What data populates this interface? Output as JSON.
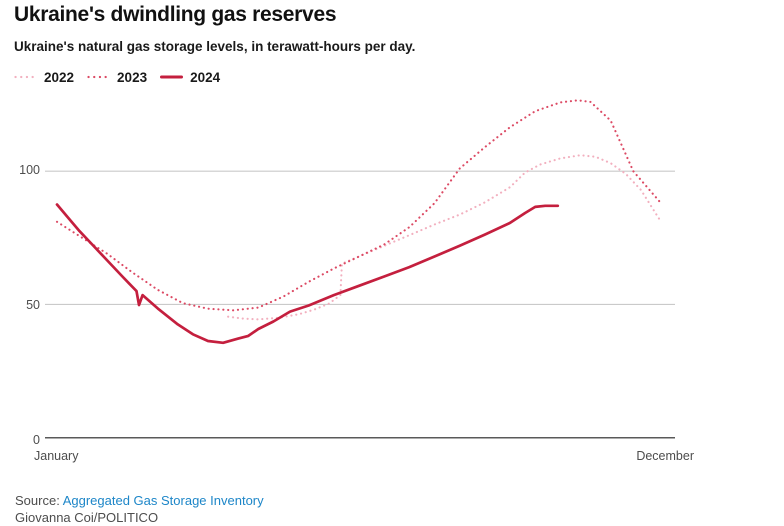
{
  "header": {
    "title": "Ukraine's dwindling gas reserves",
    "subtitle": "Ukraine's natural gas storage levels, in terawatt-hours per day."
  },
  "legend": [
    {
      "label": "2022",
      "color": "#f2b0bf",
      "style": "dotted"
    },
    {
      "label": "2023",
      "color": "#dc4a64",
      "style": "dotted"
    },
    {
      "label": "2024",
      "color": "#c41f3e",
      "style": "solid"
    }
  ],
  "chart_data": {
    "type": "line",
    "title": "Ukraine's dwindling gas reserves",
    "subtitle": "Ukraine's natural gas storage levels, in terawatt-hours per day.",
    "xlabel": "",
    "ylabel": "terawatt-hours per day",
    "x_axis": {
      "start_label": "January",
      "end_label": "December",
      "domain_months": [
        0,
        12
      ]
    },
    "y_axis": {
      "ticks": [
        0,
        50,
        100
      ],
      "ylim": [
        0,
        135
      ]
    },
    "grid": "horizontal",
    "legend_position": "top-left",
    "colors": {
      "grid": "#cacaca",
      "axis": "#595959"
    },
    "series": [
      {
        "name": "2022",
        "style": "dotted",
        "color": "#f2b0bf",
        "points": [
          [
            3.4,
            45.4
          ],
          [
            3.7,
            44.7
          ],
          [
            4.0,
            44.4
          ],
          [
            4.4,
            45.0
          ],
          [
            4.8,
            46.3
          ],
          [
            5.1,
            48.0
          ],
          [
            5.4,
            50.3
          ],
          [
            5.63,
            53.5
          ],
          [
            5.66,
            65.3
          ],
          [
            6.0,
            68.0
          ],
          [
            6.5,
            72.0
          ],
          [
            7.0,
            76.0
          ],
          [
            7.5,
            80.0
          ],
          [
            8.0,
            83.7
          ],
          [
            8.5,
            88.3
          ],
          [
            9.0,
            94.0
          ],
          [
            9.3,
            99.5
          ],
          [
            9.6,
            102.5
          ],
          [
            10.0,
            104.8
          ],
          [
            10.4,
            106.0
          ],
          [
            10.7,
            105.4
          ],
          [
            11.0,
            103.0
          ],
          [
            11.3,
            99.0
          ],
          [
            11.6,
            93.0
          ],
          [
            12.0,
            81.0
          ]
        ]
      },
      {
        "name": "2023",
        "style": "dotted",
        "color": "#dc4a64",
        "points": [
          [
            0,
            81.0
          ],
          [
            0.5,
            75.0
          ],
          [
            1.0,
            69.0
          ],
          [
            1.5,
            62.0
          ],
          [
            2.0,
            55.5
          ],
          [
            2.5,
            50.5
          ],
          [
            3.0,
            48.4
          ],
          [
            3.5,
            47.8
          ],
          [
            4.0,
            48.8
          ],
          [
            4.5,
            53.0
          ],
          [
            5.0,
            58.5
          ],
          [
            5.5,
            63.5
          ],
          [
            6.0,
            68.0
          ],
          [
            6.5,
            72.5
          ],
          [
            7.0,
            79.0
          ],
          [
            7.5,
            88.0
          ],
          [
            8.0,
            101.0
          ],
          [
            8.5,
            109.0
          ],
          [
            9.0,
            116.5
          ],
          [
            9.5,
            122.5
          ],
          [
            10.0,
            125.8
          ],
          [
            10.35,
            126.6
          ],
          [
            10.6,
            126.0
          ],
          [
            11.0,
            119.0
          ],
          [
            11.45,
            100.0
          ],
          [
            12.0,
            88.0
          ]
        ]
      },
      {
        "name": "2024",
        "style": "solid",
        "color": "#c41f3e",
        "points": [
          [
            0,
            87.5
          ],
          [
            0.2,
            83.0
          ],
          [
            0.45,
            77.5
          ],
          [
            0.7,
            72.5
          ],
          [
            1.0,
            66.5
          ],
          [
            1.3,
            60.5
          ],
          [
            1.58,
            55.0
          ],
          [
            1.63,
            49.8
          ],
          [
            1.7,
            53.5
          ],
          [
            2.0,
            48.5
          ],
          [
            2.4,
            42.5
          ],
          [
            2.7,
            38.8
          ],
          [
            3.0,
            36.3
          ],
          [
            3.3,
            35.6
          ],
          [
            3.6,
            37.2
          ],
          [
            3.8,
            38.2
          ],
          [
            4.0,
            40.8
          ],
          [
            4.3,
            43.6
          ],
          [
            4.63,
            47.3
          ],
          [
            5.0,
            49.6
          ],
          [
            5.5,
            53.5
          ],
          [
            6.0,
            57.0
          ],
          [
            6.5,
            60.5
          ],
          [
            7.0,
            64.0
          ],
          [
            7.5,
            68.0
          ],
          [
            8.0,
            72.0
          ],
          [
            8.5,
            76.2
          ],
          [
            9.0,
            80.6
          ],
          [
            9.3,
            84.3
          ],
          [
            9.5,
            86.6
          ],
          [
            9.7,
            87.0
          ],
          [
            9.95,
            87.0
          ]
        ]
      }
    ]
  },
  "footer": {
    "source_prefix": "Source:",
    "source_link": "Aggregated Gas Storage Inventory",
    "attribution": "Giovanna Coi/POLITICO"
  }
}
